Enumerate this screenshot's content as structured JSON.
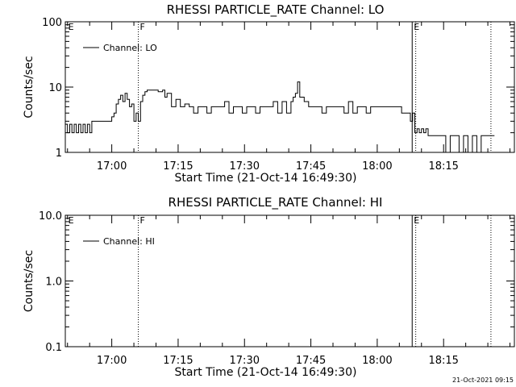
{
  "stamp": "21-Oct-2021 09:15",
  "chart_data": [
    {
      "type": "line",
      "title": "RHESSI PARTICLE_RATE Channel: LO",
      "xlabel": "Start Time (21-Oct-14 16:49:30)",
      "ylabel": "Counts/sec",
      "yscale": "log",
      "ylim": [
        1,
        100
      ],
      "xlim_minutes": [
        0,
        101.5
      ],
      "x_tick_labels": [
        "17:00",
        "17:15",
        "17:30",
        "17:45",
        "18:00",
        "18:15"
      ],
      "x_tick_minutes": [
        10.5,
        25.5,
        40.5,
        55.5,
        70.5,
        85.5
      ],
      "y_tick_labels": [
        "1",
        "10",
        "100"
      ],
      "y_tick_values": [
        1,
        10,
        100
      ],
      "flags": [
        {
          "label": "E",
          "minute": 0.3
        },
        {
          "label": "F",
          "minute": 16.5
        },
        {
          "label": "E",
          "minute": 78.4
        }
      ],
      "dotted_lines_minutes": [
        16.5,
        79.2,
        96.2
      ],
      "solid_lines_minutes": [
        78.4
      ],
      "legend": {
        "text": "Channel: LO",
        "placement": "top-left"
      },
      "series": [
        {
          "name": "Channel: LO",
          "x": [
            0,
            0.5,
            1,
            1.5,
            2,
            2.5,
            3,
            3.5,
            4,
            4.5,
            5,
            5.5,
            6,
            7,
            8,
            9,
            9.5,
            10,
            10.5,
            11,
            11.5,
            12,
            12.5,
            13,
            13.5,
            14,
            14.5,
            15,
            15.5,
            16,
            16.5,
            17,
            17.5,
            18,
            18.5,
            19,
            19.5,
            20,
            21,
            22,
            22.5,
            23,
            24,
            25,
            26,
            27,
            28,
            29,
            30,
            31,
            32,
            33,
            34,
            35,
            36,
            37,
            38,
            39,
            40,
            41,
            42,
            43,
            44,
            45,
            46,
            47,
            48,
            49,
            50,
            51,
            51.5,
            52,
            52.5,
            53,
            53.5,
            54,
            55,
            56,
            57,
            58,
            59,
            60,
            61,
            62,
            63,
            64,
            65,
            66,
            67,
            68,
            69,
            70,
            71,
            72,
            73,
            74,
            75,
            76,
            77,
            77.5,
            78,
            78.5,
            79,
            79.5,
            80,
            80.5,
            81,
            81.5,
            82,
            83,
            84,
            85,
            86,
            87,
            88,
            89,
            90,
            91,
            92,
            93,
            94,
            95,
            96,
            97
          ],
          "values": [
            2.7,
            2,
            2.7,
            2,
            2.7,
            2,
            2.7,
            2,
            2.7,
            2,
            2.7,
            2,
            3,
            3,
            3,
            3,
            3,
            3,
            3.5,
            4,
            5.5,
            6.5,
            7.5,
            6,
            8,
            6.5,
            5,
            5.5,
            3,
            4,
            3,
            6,
            7.5,
            8.5,
            9,
            9,
            9,
            9,
            8.5,
            9,
            7,
            8,
            5,
            6.5,
            5,
            5.5,
            5,
            4,
            5,
            5,
            4,
            5,
            5,
            5,
            6,
            4,
            5,
            5,
            4,
            5,
            5,
            4,
            5,
            5,
            5,
            6,
            4,
            6,
            4,
            6,
            7,
            8,
            12,
            7,
            7,
            6,
            5,
            5,
            5,
            4,
            5,
            5,
            5,
            5,
            4,
            6,
            4,
            5,
            5,
            4,
            5,
            5,
            5,
            5,
            5,
            5,
            5,
            4,
            4,
            4,
            3,
            4,
            2,
            2.3,
            2,
            2.3,
            2,
            2.3,
            1.8,
            1.8,
            1.8,
            1.8,
            1,
            1.8,
            1.8,
            1,
            1.8,
            1,
            1.8,
            1,
            1.8,
            1.8,
            1.8,
            1.8
          ]
        }
      ]
    },
    {
      "type": "line",
      "title": "RHESSI PARTICLE_RATE Channel: HI",
      "xlabel": "Start Time (21-Oct-14 16:49:30)",
      "ylabel": "Counts/sec",
      "yscale": "log",
      "ylim": [
        0.1,
        10
      ],
      "xlim_minutes": [
        0,
        101.5
      ],
      "x_tick_labels": [
        "17:00",
        "17:15",
        "17:30",
        "17:45",
        "18:00",
        "18:15"
      ],
      "x_tick_minutes": [
        10.5,
        25.5,
        40.5,
        55.5,
        70.5,
        85.5
      ],
      "y_tick_labels": [
        "0.1",
        "1.0",
        "10.0"
      ],
      "y_tick_values": [
        0.1,
        1,
        10
      ],
      "flags": [
        {
          "label": "E",
          "minute": 0.3
        },
        {
          "label": "F",
          "minute": 16.5
        },
        {
          "label": "E",
          "minute": 78.4
        }
      ],
      "dotted_lines_minutes": [
        16.5,
        79.2,
        96.2
      ],
      "solid_lines_minutes": [
        78.4
      ],
      "legend": {
        "text": "Channel: HI",
        "placement": "top-left"
      },
      "series": [
        {
          "name": "Channel: HI",
          "x": [],
          "values": []
        }
      ]
    }
  ]
}
